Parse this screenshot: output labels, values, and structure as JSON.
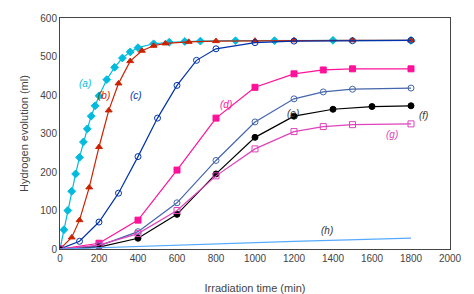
{
  "chart_data": {
    "type": "line",
    "xlabel": "Irradiation time (min)",
    "ylabel": "Hydrogen evolution (ml)",
    "xlim": [
      0,
      2000
    ],
    "ylim": [
      0,
      600
    ],
    "xticks": [
      0,
      200,
      400,
      600,
      800,
      1000,
      1200,
      1400,
      1600,
      1800,
      2000
    ],
    "yticks": [
      0,
      100,
      200,
      300,
      400,
      500,
      600
    ],
    "grid": false,
    "line_style": "solid",
    "series": [
      {
        "color": "#00BBDD",
        "marker": "diamond",
        "x": [
          0,
          20,
          40,
          60,
          80,
          100,
          120,
          140,
          160,
          180,
          200,
          240,
          280,
          320,
          360,
          400,
          480,
          560,
          640,
          720,
          900,
          1100,
          1400,
          1800
        ],
        "values": [
          0,
          50,
          100,
          150,
          195,
          238,
          278,
          312,
          345,
          372,
          398,
          440,
          472,
          496,
          512,
          523,
          533,
          537,
          539,
          540,
          541,
          541,
          542,
          542
        ]
      },
      {
        "color": "#CC2200",
        "marker": "triangle-up",
        "x": [
          0,
          60,
          100,
          150,
          200,
          250,
          300,
          360,
          420,
          480,
          540,
          660,
          800,
          1000,
          1200,
          1500,
          1800
        ],
        "values": [
          0,
          30,
          75,
          160,
          265,
          360,
          430,
          488,
          515,
          528,
          534,
          538,
          540,
          541,
          542,
          542,
          542
        ]
      },
      {
        "color": "#0033AA",
        "marker": "circle-open",
        "x": [
          0,
          100,
          200,
          300,
          400,
          500,
          600,
          700,
          800,
          1000,
          1200,
          1500,
          1800
        ],
        "values": [
          0,
          20,
          70,
          145,
          240,
          340,
          425,
          490,
          520,
          536,
          540,
          541,
          542
        ]
      },
      {
        "color": "#FF1199",
        "marker": "square",
        "x": [
          0,
          200,
          400,
          600,
          800,
          1000,
          1200,
          1350,
          1500,
          1800
        ],
        "values": [
          0,
          15,
          75,
          205,
          340,
          420,
          455,
          465,
          468,
          468
        ]
      },
      {
        "color": "#4466AA",
        "marker": "circle-open",
        "x": [
          0,
          200,
          400,
          600,
          800,
          1000,
          1200,
          1350,
          1500,
          1800
        ],
        "values": [
          0,
          8,
          45,
          120,
          230,
          330,
          390,
          408,
          415,
          418
        ]
      },
      {
        "color": "#000000",
        "marker": "circle",
        "x": [
          0,
          200,
          400,
          600,
          800,
          1000,
          1200,
          1400,
          1600,
          1800
        ],
        "values": [
          0,
          5,
          28,
          90,
          195,
          290,
          345,
          363,
          370,
          372
        ]
      },
      {
        "color": "#DD44BB",
        "marker": "square-open",
        "x": [
          0,
          200,
          400,
          600,
          800,
          1000,
          1200,
          1350,
          1500,
          1800
        ],
        "values": [
          0,
          10,
          40,
          100,
          190,
          260,
          305,
          318,
          323,
          325
        ]
      },
      {
        "color": "#55AAFF",
        "x": [
          0,
          600,
          1200,
          1800
        ],
        "values": [
          0,
          10,
          20,
          28
        ]
      }
    ],
    "annotations": [
      {
        "text": "(a)",
        "x": 85,
        "y": 430,
        "color": "#00BBDD"
      },
      {
        "text": "(b)",
        "x": 185,
        "y": 400,
        "color": "#CC2200"
      },
      {
        "text": "(c)",
        "x": 350,
        "y": 398,
        "color": "#0033AA"
      },
      {
        "text": "(d)",
        "x": 810,
        "y": 375,
        "color": "#FF1199"
      },
      {
        "text": "(e)",
        "x": 1155,
        "y": 352,
        "color": "#333333"
      },
      {
        "text": "(f)",
        "x": 1830,
        "y": 348,
        "color": "#333333"
      },
      {
        "text": "(g)",
        "x": 1660,
        "y": 298,
        "color": "#DD44BB"
      },
      {
        "text": "(h)",
        "x": 1330,
        "y": 48,
        "color": "#333333"
      }
    ]
  }
}
